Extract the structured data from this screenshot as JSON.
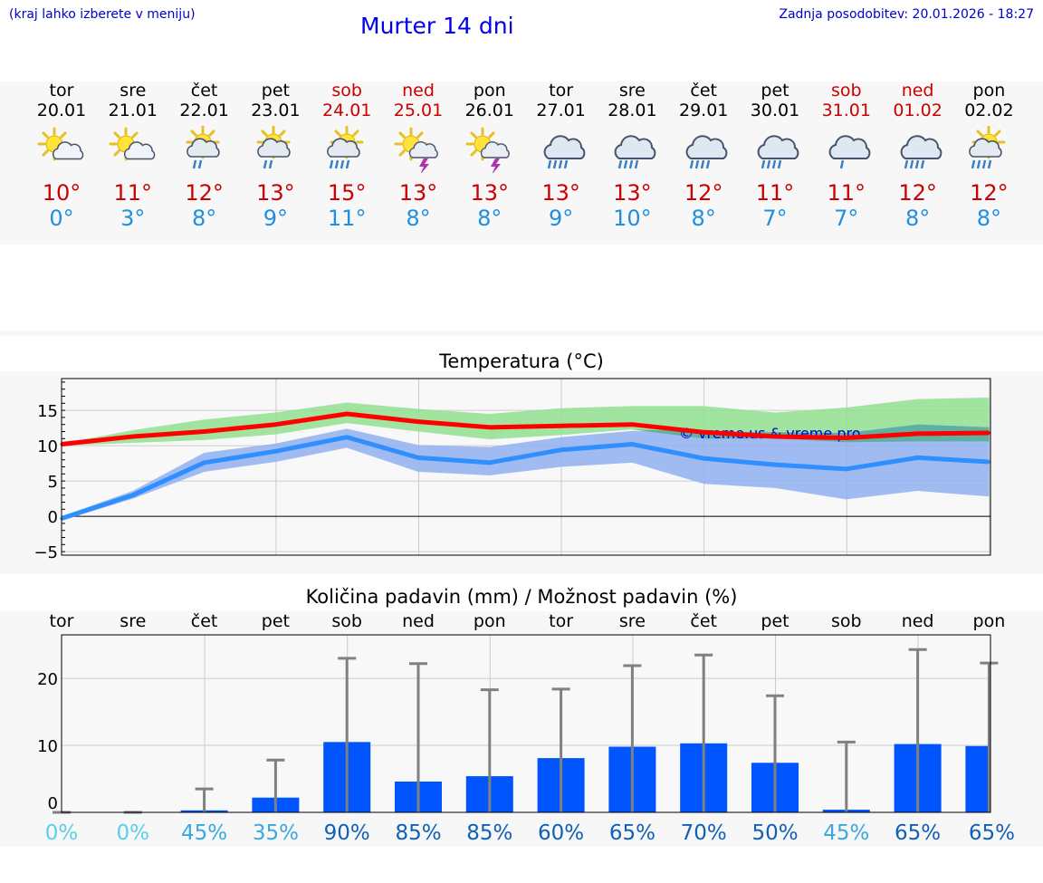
{
  "header": {
    "hint": "(kraj lahko izberete v meniju)",
    "title": "Murter 14 dni",
    "updated": "Zadnja posodobitev: 20.01.2026 - 18:27"
  },
  "days": [
    {
      "name": "tor",
      "date": "20.01",
      "weekend": false,
      "icon": "sun-cloud-icon",
      "tmax": "10°",
      "tmin": "0°"
    },
    {
      "name": "sre",
      "date": "21.01",
      "weekend": false,
      "icon": "sun-cloud-icon",
      "tmax": "11°",
      "tmin": "3°"
    },
    {
      "name": "čet",
      "date": "22.01",
      "weekend": false,
      "icon": "sun-rain-icon",
      "tmax": "12°",
      "tmin": "8°"
    },
    {
      "name": "pet",
      "date": "23.01",
      "weekend": false,
      "icon": "sun-rain-icon",
      "tmax": "13°",
      "tmin": "9°"
    },
    {
      "name": "sob",
      "date": "24.01",
      "weekend": true,
      "icon": "sun-heavy-rain-icon",
      "tmax": "15°",
      "tmin": "11°"
    },
    {
      "name": "ned",
      "date": "25.01",
      "weekend": true,
      "icon": "sun-thunder-icon",
      "tmax": "13°",
      "tmin": "8°"
    },
    {
      "name": "pon",
      "date": "26.01",
      "weekend": false,
      "icon": "sun-thunder-icon",
      "tmax": "13°",
      "tmin": "8°"
    },
    {
      "name": "tor",
      "date": "27.01",
      "weekend": false,
      "icon": "cloud-rain-icon",
      "tmax": "13°",
      "tmin": "9°"
    },
    {
      "name": "sre",
      "date": "28.01",
      "weekend": false,
      "icon": "cloud-rain-icon",
      "tmax": "13°",
      "tmin": "10°"
    },
    {
      "name": "čet",
      "date": "29.01",
      "weekend": false,
      "icon": "cloud-rain-icon",
      "tmax": "12°",
      "tmin": "8°"
    },
    {
      "name": "pet",
      "date": "30.01",
      "weekend": false,
      "icon": "cloud-rain-icon",
      "tmax": "11°",
      "tmin": "7°"
    },
    {
      "name": "sob",
      "date": "31.01",
      "weekend": true,
      "icon": "cloud-light-rain-icon",
      "tmax": "11°",
      "tmin": "7°"
    },
    {
      "name": "ned",
      "date": "01.02",
      "weekend": true,
      "icon": "cloud-rain-icon",
      "tmax": "12°",
      "tmin": "8°"
    },
    {
      "name": "pon",
      "date": "02.02",
      "weekend": false,
      "icon": "sun-heavy-rain-icon",
      "tmax": "12°",
      "tmin": "8°"
    }
  ],
  "colors": {
    "max": "#ff0000",
    "min": "#2f8fff",
    "max_band": "#90e090",
    "min_band": "#8fb0f0",
    "overlap": "#5aaf9a",
    "bar": "#0055ff",
    "whisker": "#808080"
  },
  "chart_data": [
    {
      "type": "line",
      "title": "Temperatura (°C)",
      "watermark": "© vreme.us & vreme.pro",
      "x": [
        0,
        1,
        2,
        3,
        4,
        5,
        6,
        7,
        8,
        9,
        10,
        11,
        12,
        13
      ],
      "yticks": [
        -5,
        0,
        5,
        10,
        15
      ],
      "ylabels": [
        "−5",
        "0",
        "5",
        "10",
        "15"
      ],
      "ylim": [
        -5.5,
        19.5
      ],
      "series": [
        {
          "name": "max",
          "values": [
            10.2,
            11.3,
            12.0,
            13.0,
            14.5,
            13.4,
            12.6,
            12.8,
            13.0,
            11.9,
            11.3,
            11.1,
            11.7,
            11.8
          ],
          "band_low": [
            10.0,
            10.4,
            10.8,
            11.6,
            13.2,
            12.0,
            10.9,
            11.5,
            12.3,
            11.0,
            11.0,
            10.5,
            10.6,
            10.6
          ],
          "band_high": [
            10.3,
            12.2,
            13.7,
            14.7,
            16.1,
            15.2,
            14.5,
            15.3,
            15.6,
            15.6,
            14.7,
            15.4,
            16.6,
            16.8
          ]
        },
        {
          "name": "min",
          "values": [
            -0.3,
            3.0,
            7.6,
            9.2,
            11.2,
            8.3,
            7.6,
            9.4,
            10.2,
            8.2,
            7.3,
            6.7,
            8.3,
            7.7
          ],
          "band_low": [
            -0.6,
            2.5,
            6.3,
            7.7,
            9.7,
            6.3,
            5.8,
            7.0,
            7.6,
            4.6,
            4.0,
            2.4,
            3.6,
            2.8
          ],
          "band_high": [
            0.0,
            3.6,
            9.0,
            10.3,
            12.4,
            10.1,
            9.8,
            11.2,
            12.1,
            12.0,
            11.9,
            11.8,
            13.0,
            12.6
          ]
        }
      ]
    },
    {
      "type": "bar",
      "title": "Količina padavin (mm) / Možnost padavin (%)",
      "categories": [
        "tor",
        "sre",
        "čet",
        "pet",
        "sob",
        "ned",
        "pon",
        "tor",
        "sre",
        "čet",
        "pet",
        "sob",
        "ned",
        "pon"
      ],
      "values": [
        0.0,
        0.0,
        0.3,
        2.2,
        10.5,
        4.6,
        5.4,
        8.1,
        9.8,
        10.3,
        7.4,
        0.4,
        10.2,
        9.9
      ],
      "whisker_high": [
        0.0,
        0.0,
        3.5,
        7.8,
        23.0,
        22.2,
        18.3,
        18.4,
        21.9,
        23.5,
        17.4,
        10.5,
        24.3,
        22.3
      ],
      "probability": [
        "0%",
        "0%",
        "45%",
        "35%",
        "90%",
        "85%",
        "85%",
        "60%",
        "65%",
        "70%",
        "50%",
        "45%",
        "65%",
        "65%"
      ],
      "probability_levels": [
        0,
        0,
        1,
        1,
        2,
        2,
        2,
        2,
        2,
        2,
        2,
        1,
        2,
        2
      ],
      "yticks": [
        0,
        10,
        20
      ],
      "ylabels": [
        "0",
        "10",
        "20"
      ],
      "ylim": [
        0,
        26.5
      ]
    }
  ]
}
